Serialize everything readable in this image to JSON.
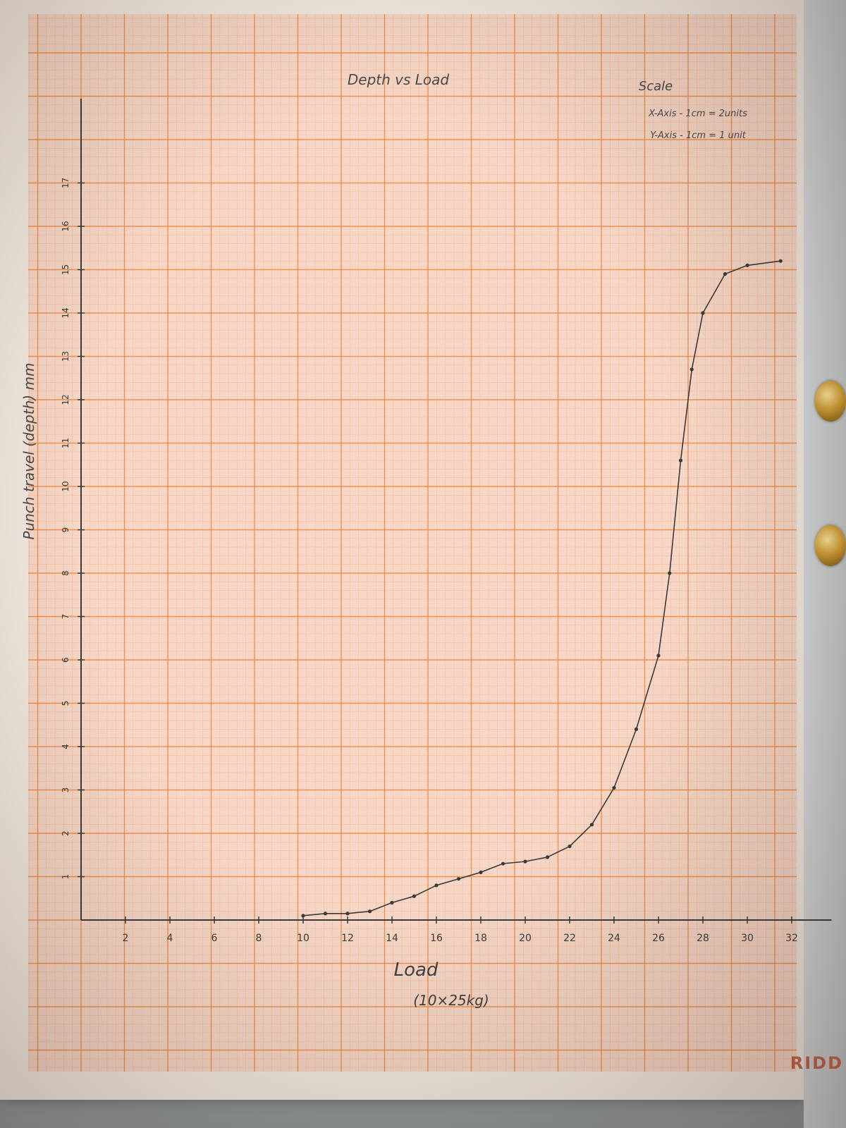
{
  "chart_data": {
    "type": "line",
    "title": "Depth vs Load",
    "xlabel_line1": "Load",
    "xlabel_line2": "(10×25kg)",
    "ylabel": "Punch travel (depth) mm",
    "x_ticks": [
      "2",
      "4",
      "6",
      "8",
      "10",
      "12",
      "14",
      "16",
      "18",
      "20",
      "22",
      "24",
      "26",
      "28",
      "30",
      "32"
    ],
    "y_ticks": [
      "1",
      "2",
      "3",
      "4",
      "5",
      "6",
      "7",
      "8",
      "9",
      "10",
      "11",
      "12",
      "13",
      "14",
      "15",
      "16",
      "17"
    ],
    "xlim": [
      0,
      33
    ],
    "ylim": [
      0,
      18.5
    ],
    "scale": {
      "heading": "Scale",
      "x_line": "X-Axis - 1cm = 2units",
      "y_line": "Y-Axis - 1cm = 1 unit"
    },
    "series": [
      {
        "x": [
          10,
          11,
          12,
          13,
          14,
          15,
          16,
          17,
          18,
          19,
          20,
          21,
          22,
          23,
          24,
          25,
          26,
          26.5,
          27,
          27.5,
          28,
          29,
          30,
          31.5
        ],
        "y": [
          0.1,
          0.15,
          0.15,
          0.2,
          0.4,
          0.55,
          0.8,
          0.95,
          1.1,
          1.3,
          1.35,
          1.45,
          1.7,
          2.2,
          3.05,
          4.4,
          6.1,
          8.0,
          10.6,
          12.7,
          14.0,
          14.9,
          15.1,
          15.2
        ]
      }
    ],
    "colors": {
      "grid_major": "#f28a3e",
      "grid_minor": "#f7b38a",
      "ink": "#3a3a3a",
      "paper": "#f6d7c7"
    }
  }
}
